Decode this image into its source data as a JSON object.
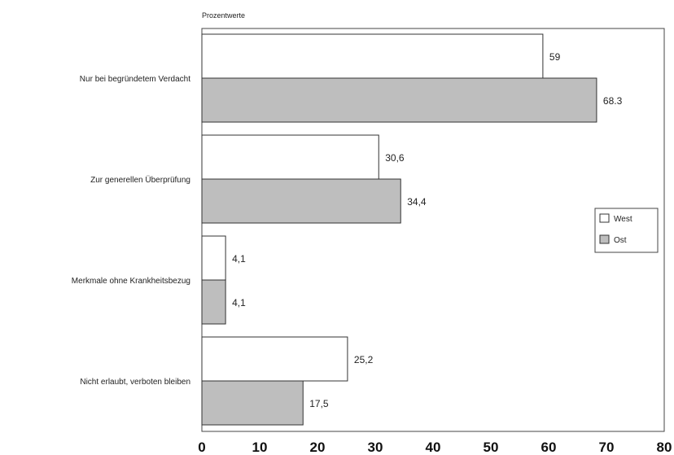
{
  "chart_data": {
    "type": "bar",
    "orientation": "horizontal",
    "subtitle": "Prozentwerte",
    "categories": [
      "Nur bei begründetem Verdacht",
      "Zur generellen Überprüfung",
      "Merkmale ohne Krankheitsbezug",
      "Nicht erlaubt, verboten bleiben"
    ],
    "series": [
      {
        "name": "West",
        "values": [
          59,
          30.6,
          4.1,
          25.2
        ],
        "labels": [
          "59",
          "30,6",
          "4,1",
          "25,2"
        ],
        "color": "#ffffff"
      },
      {
        "name": "Ost",
        "values": [
          68.3,
          34.4,
          4.1,
          17.5
        ],
        "labels": [
          "68.3",
          "34,4",
          "4,1",
          "17,5"
        ],
        "color": "#bebebe"
      }
    ],
    "xlim": [
      0,
      80
    ],
    "xticks": [
      "0",
      "10",
      "20",
      "30",
      "40",
      "50",
      "60",
      "70",
      "80"
    ],
    "grid": false,
    "legend_position": "right"
  }
}
